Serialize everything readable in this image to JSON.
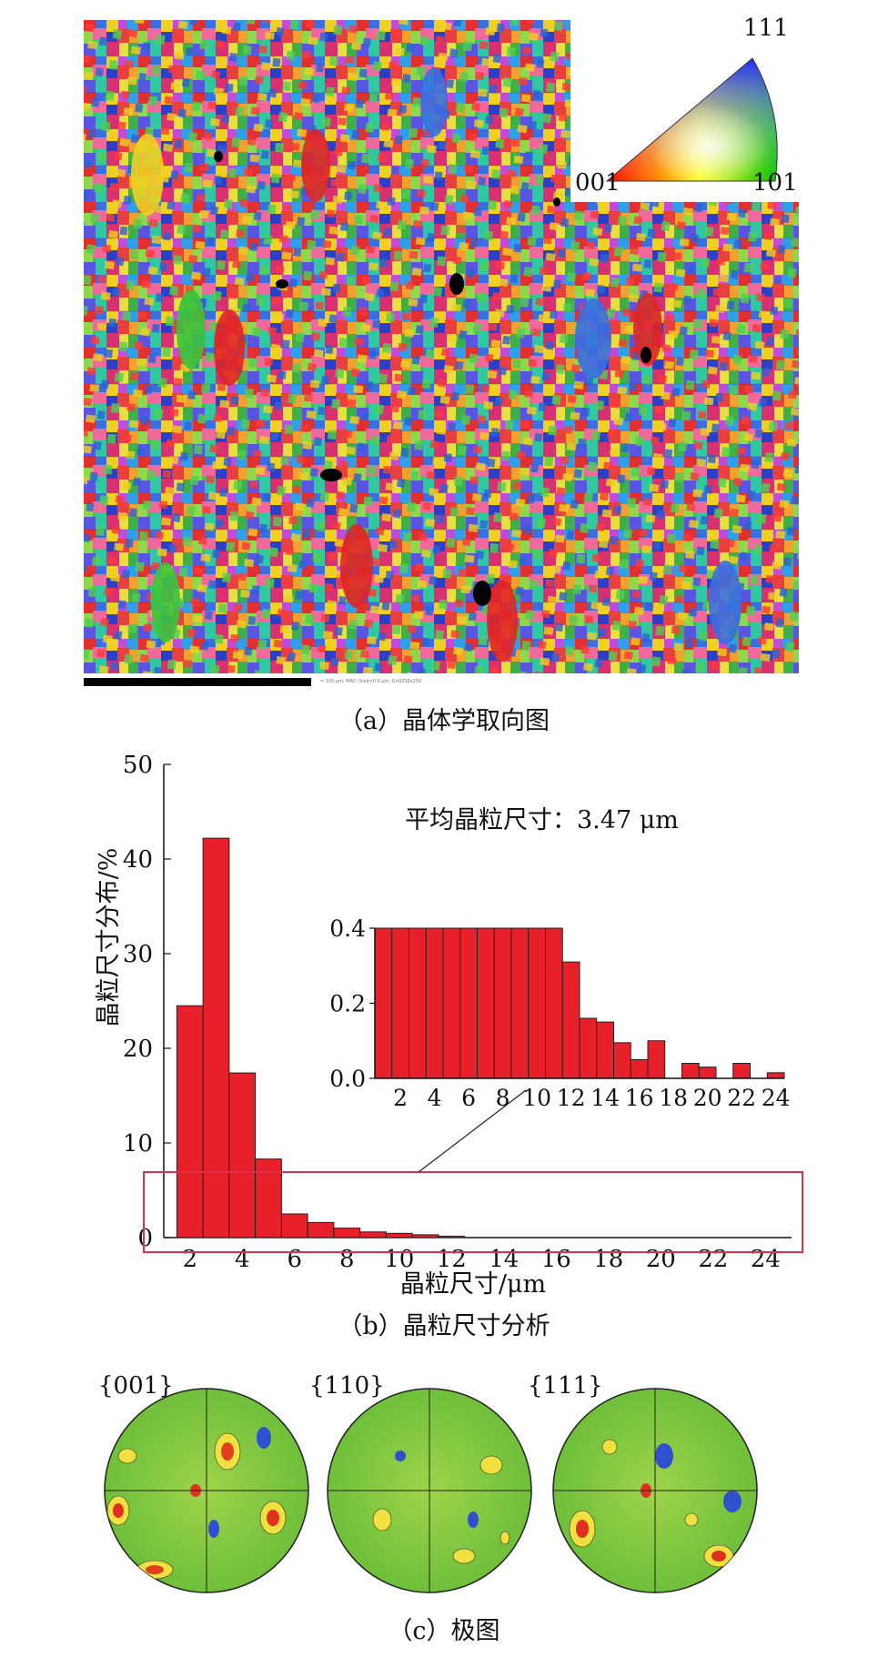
{
  "panel_a": {
    "caption": "（a）晶体学取向图",
    "ipf_key": {
      "top": "111",
      "left": "001",
      "right": "101"
    },
    "scale_bar_text": "= 100 μm; MAP; Step=0.6 μm; Grid256x256"
  },
  "panel_b": {
    "caption": "（b）晶粒尺寸分析",
    "annotation": "平均晶粒尺寸：3.47 μm",
    "chart_data": [
      {
        "type": "bar",
        "xlabel": "晶粒尺寸/μm",
        "ylabel": "晶粒尺寸分布/%",
        "xlim": [
          1,
          25
        ],
        "ylim": [
          0,
          50
        ],
        "yticks": [
          0,
          10,
          20,
          30,
          40,
          50
        ],
        "xticks": [
          2,
          4,
          6,
          8,
          10,
          12,
          14,
          16,
          18,
          20,
          22,
          24
        ],
        "x": [
          2,
          3,
          4,
          5,
          6,
          7,
          8,
          9,
          10,
          11,
          12
        ],
        "values": [
          24.5,
          42.2,
          17.4,
          8.3,
          2.5,
          1.6,
          1.0,
          0.6,
          0.45,
          0.3,
          0.15
        ],
        "color": "#e8202a"
      },
      {
        "type": "bar",
        "role": "inset",
        "xlim": [
          1,
          25
        ],
        "ylim": [
          0,
          0.4
        ],
        "yticks": [
          "0.0",
          "0.2",
          "0.4"
        ],
        "xticks": [
          2,
          4,
          6,
          8,
          10,
          12,
          14,
          16,
          18,
          20,
          22,
          24
        ],
        "x": [
          1,
          2,
          3,
          4,
          5,
          6,
          7,
          8,
          9,
          10,
          11,
          12,
          13,
          14,
          15,
          16,
          17,
          18,
          19,
          20,
          21,
          22,
          23,
          24
        ],
        "values": [
          0.4,
          0.4,
          0.4,
          0.4,
          0.4,
          0.4,
          0.4,
          0.4,
          0.4,
          0.4,
          0.4,
          0.31,
          0.16,
          0.15,
          0.095,
          0.05,
          0.1,
          0.0,
          0.04,
          0.03,
          0.0,
          0.04,
          0.0,
          0.015
        ],
        "color": "#e8202a"
      }
    ]
  },
  "panel_c": {
    "caption": "（c）极图",
    "poles": [
      "{001}",
      "{110}",
      "{111}"
    ]
  }
}
